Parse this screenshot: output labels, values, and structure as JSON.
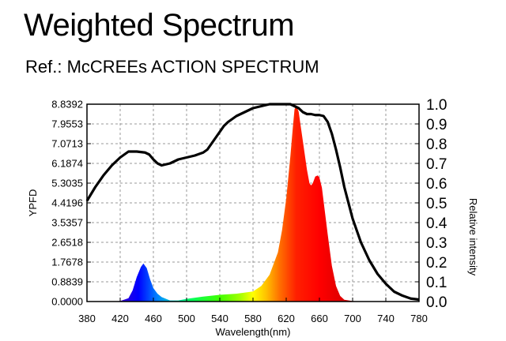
{
  "header": {
    "title": "Weighted Spectrum",
    "subtitle": "Ref.: McCREEs ACTION SPECTRUM"
  },
  "chart_data": {
    "type": "area",
    "title": "Weighted Spectrum",
    "subtitle": "Ref.: McCREEs ACTION SPECTRUM",
    "xlabel": "Wavelength(nm)",
    "ylabel": "YPFD",
    "y2label": "Relative intensity",
    "xlim": [
      380,
      780
    ],
    "ylim": [
      0,
      8.8392
    ],
    "y2lim": [
      0,
      1.0
    ],
    "x_ticks": [
      "380",
      "420",
      "460",
      "500",
      "540",
      "580",
      "620",
      "660",
      "700",
      "740",
      "780"
    ],
    "y_ticks": [
      "0.0000",
      "0.8839",
      "1.7678",
      "2.6518",
      "3.5357",
      "4.4196",
      "5.3035",
      "6.1874",
      "7.0713",
      "7.9553",
      "8.8392"
    ],
    "y2_ticks": [
      "0.0",
      "0.1",
      "0.2",
      "0.3",
      "0.4",
      "0.5",
      "0.6",
      "0.7",
      "0.8",
      "0.9",
      "1.0"
    ],
    "grid": true,
    "series": [
      {
        "role": "weighted spectrum (filled, colored by wavelength)",
        "axis": "left",
        "x": [
          380,
          400,
          420,
          430,
          435,
          440,
          445,
          448,
          452,
          456,
          460,
          465,
          470,
          480,
          490,
          500,
          520,
          540,
          560,
          580,
          590,
          600,
          610,
          615,
          620,
          625,
          628,
          630,
          632,
          635,
          640,
          645,
          648,
          650,
          652,
          655,
          658,
          660,
          663,
          666,
          670,
          675,
          680,
          685,
          690,
          700,
          720,
          780
        ],
        "y": [
          0,
          0,
          0.02,
          0.15,
          0.5,
          1.1,
          1.55,
          1.7,
          1.5,
          1.0,
          0.6,
          0.35,
          0.2,
          0.05,
          0.05,
          0.12,
          0.22,
          0.3,
          0.35,
          0.45,
          0.7,
          1.2,
          2.2,
          3.2,
          4.6,
          6.5,
          7.8,
          8.6,
          8.8,
          8.5,
          7.2,
          5.9,
          5.3,
          5.2,
          5.3,
          5.6,
          5.65,
          5.55,
          5.1,
          4.2,
          3.0,
          1.6,
          0.7,
          0.25,
          0.08,
          0.02,
          0,
          0
        ]
      },
      {
        "role": "relative intensity (black curve)",
        "axis": "right",
        "x": [
          380,
          390,
          400,
          410,
          420,
          425,
          430,
          440,
          450,
          455,
          460,
          465,
          470,
          475,
          480,
          485,
          490,
          500,
          510,
          520,
          525,
          530,
          540,
          545,
          550,
          560,
          570,
          580,
          590,
          600,
          610,
          620,
          625,
          630,
          635,
          640,
          645,
          650,
          655,
          660,
          665,
          670,
          675,
          680,
          685,
          690,
          700,
          710,
          720,
          730,
          740,
          750,
          760,
          770,
          780
        ],
        "y": [
          0.51,
          0.58,
          0.64,
          0.69,
          0.73,
          0.745,
          0.76,
          0.76,
          0.755,
          0.745,
          0.72,
          0.7,
          0.69,
          0.695,
          0.7,
          0.71,
          0.72,
          0.73,
          0.74,
          0.755,
          0.77,
          0.8,
          0.86,
          0.89,
          0.91,
          0.94,
          0.96,
          0.98,
          0.99,
          1.0,
          1.0,
          1.0,
          1.0,
          0.99,
          0.98,
          0.96,
          0.95,
          0.95,
          0.945,
          0.945,
          0.94,
          0.91,
          0.85,
          0.77,
          0.68,
          0.58,
          0.42,
          0.3,
          0.21,
          0.14,
          0.09,
          0.05,
          0.03,
          0.015,
          0.01
        ]
      }
    ]
  }
}
